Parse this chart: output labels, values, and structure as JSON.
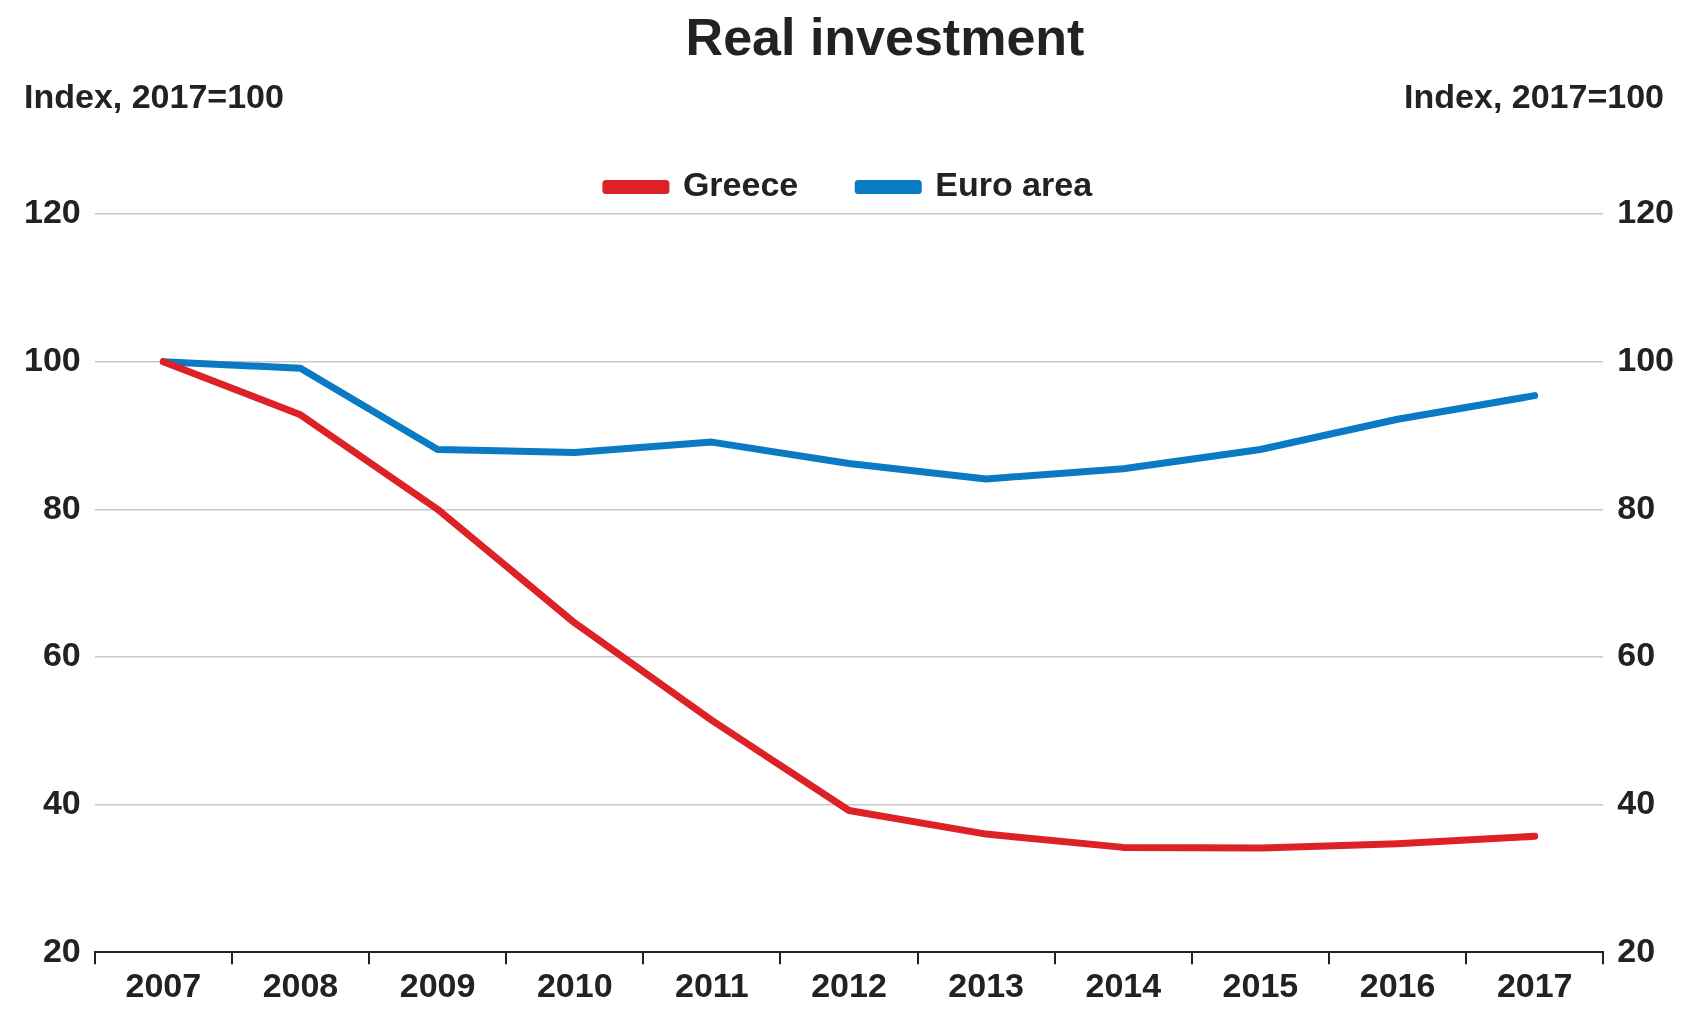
{
  "chart_data": {
    "type": "line",
    "title": "Real investment",
    "ylabel": "Index, 2017=100",
    "y2label": "Index, 2017=100",
    "categories": [
      "2007",
      "2008",
      "2009",
      "2010",
      "2011",
      "2012",
      "2013",
      "2014",
      "2015",
      "2016",
      "2017"
    ],
    "series": [
      {
        "name": "Greece",
        "color": "#dc2127",
        "values": [
          100,
          92.8,
          80,
          64.6,
          51.4,
          39.2,
          36,
          34.2,
          34.1,
          34.7,
          35.7
        ]
      },
      {
        "name": "Euro area",
        "color": "#0a7ac4",
        "values": [
          100,
          99.1,
          88.1,
          87.7,
          89.1,
          86.2,
          84.1,
          85.5,
          88.1,
          92.2,
          95.4
        ]
      }
    ],
    "ylim": [
      20,
      120
    ],
    "yticks": [
      20,
      40,
      60,
      80,
      100,
      120
    ],
    "y2lim": [
      20,
      120
    ],
    "y2ticks": [
      20,
      40,
      60,
      80,
      100,
      120
    ],
    "grid": "y",
    "legend": "top",
    "marker": "none",
    "line_style": "solid"
  }
}
